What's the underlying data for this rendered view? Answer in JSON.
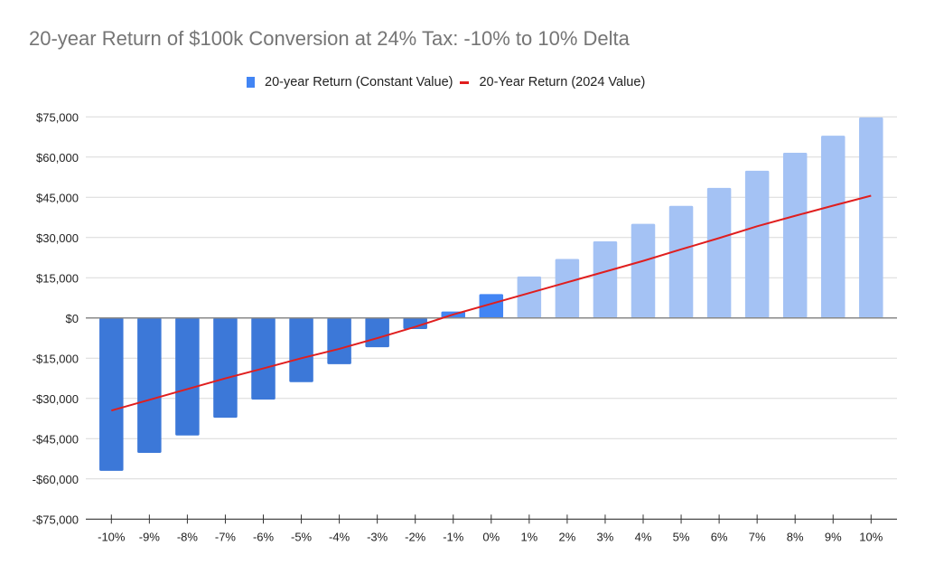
{
  "chart_data": {
    "type": "bar",
    "title": "20-year Return of $100k Conversion at 24% Tax: -10% to 10% Delta",
    "xlabel": "",
    "ylabel": "",
    "categories": [
      "-10%",
      "-9%",
      "-8%",
      "-7%",
      "-6%",
      "-5%",
      "-4%",
      "-3%",
      "-2%",
      "-1%",
      "0%",
      "1%",
      "2%",
      "3%",
      "4%",
      "5%",
      "6%",
      "7%",
      "8%",
      "9%",
      "10%"
    ],
    "ylim": [
      -75000,
      75000
    ],
    "yticks": [
      75000,
      60000,
      45000,
      30000,
      15000,
      0,
      -15000,
      -30000,
      -45000,
      -60000,
      -75000
    ],
    "ytick_labels": [
      "$75,000",
      "$60,000",
      "$45,000",
      "$30,000",
      "$15,000",
      "$0",
      "-$15,000",
      "-$30,000",
      "-$45,000",
      "-$60,000",
      "-$75,000"
    ],
    "grid": true,
    "legend_position": "top-center",
    "series": [
      {
        "name": "20-year Return (Constant Value)",
        "type": "bar",
        "color": "#4285f4",
        "negative_color": "#3c78d8",
        "positive_color": "#a4c2f4",
        "values": [
          -57000,
          -50300,
          -43800,
          -37200,
          -30400,
          -23900,
          -17200,
          -10900,
          -4100,
          2400,
          8900,
          15500,
          22000,
          28600,
          35100,
          41800,
          48500,
          54900,
          61600,
          68000,
          74800
        ]
      },
      {
        "name": "20-Year Return (2024 Value)",
        "type": "line",
        "color": "#e01e1e",
        "values": [
          -34500,
          -30500,
          -26500,
          -22500,
          -18800,
          -15000,
          -11500,
          -7500,
          -3300,
          1300,
          5300,
          9300,
          13300,
          17300,
          21300,
          25600,
          29800,
          34200,
          38100,
          41900,
          45600
        ]
      }
    ]
  }
}
